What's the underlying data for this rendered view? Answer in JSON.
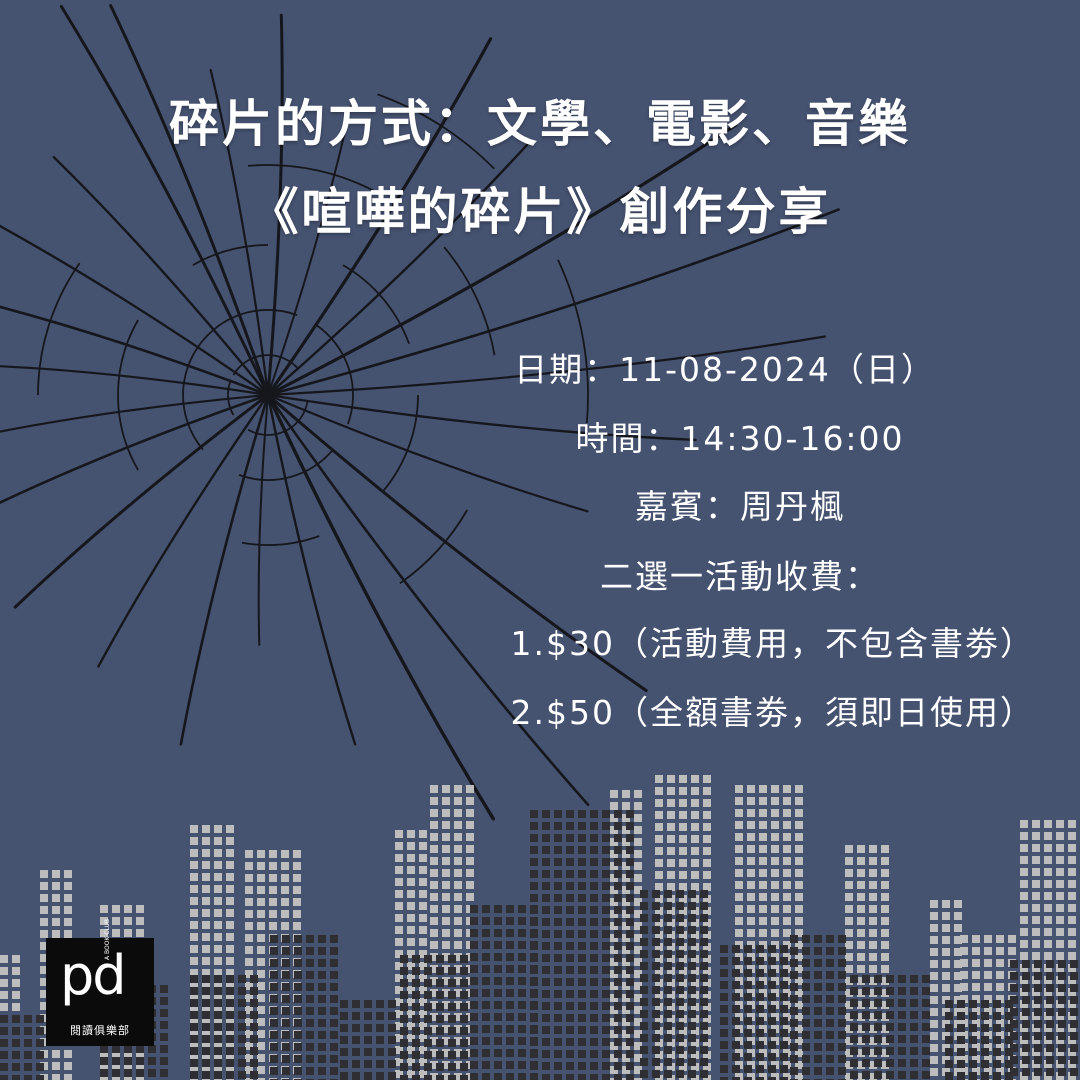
{
  "title": {
    "line1": "碎片的方式：文學、電影、音樂",
    "line2": "《喧嘩的碎片》創作分享"
  },
  "info": {
    "date": "日期：11-08-2024（日）",
    "time": "時間：14:30-16:00",
    "guest": "嘉賓：周丹楓",
    "fee_heading": "二選一活動收費：",
    "option1": "1.$30（活動費用，不包含書劵）",
    "option2": "2.$50（全額書劵，須即日使用）"
  },
  "logo": {
    "mark": "pd",
    "subtitle": "A BOOK CLUB",
    "chinese": "閱讀俱樂部"
  },
  "colors": {
    "background": "#455270",
    "text": "#ffffff",
    "crack": "#15171c",
    "skyline_light": "#bdbdbd",
    "skyline_dark": "#2f2f33",
    "logo_bg": "#0b0b0b"
  },
  "icons": [
    "broken-glass-icon",
    "city-skyline-icon"
  ]
}
